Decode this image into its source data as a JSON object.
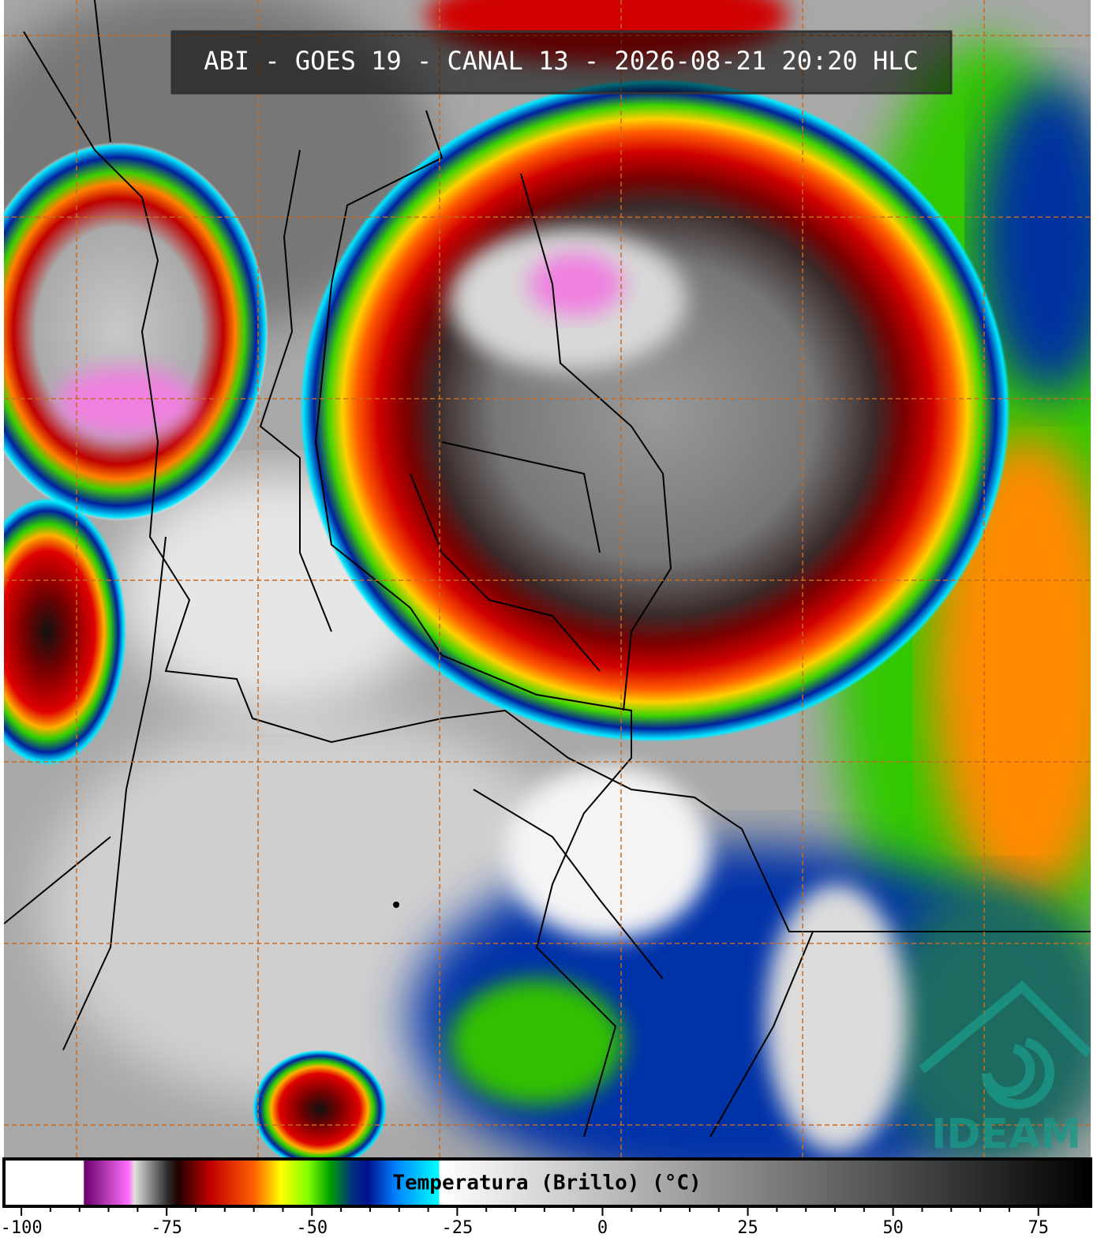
{
  "header": {
    "title": "ABI - GOES 19 - CANAL 13 - 2026-08-21 20:20 HLC"
  },
  "colorbar": {
    "label": "Temperatura (Brillo) (°C)",
    "lim": [
      -103,
      84
    ],
    "ticks": [
      -100,
      -75,
      -50,
      -25,
      0,
      25,
      50,
      75
    ]
  },
  "logo": {
    "text": "IDEAM"
  }
}
